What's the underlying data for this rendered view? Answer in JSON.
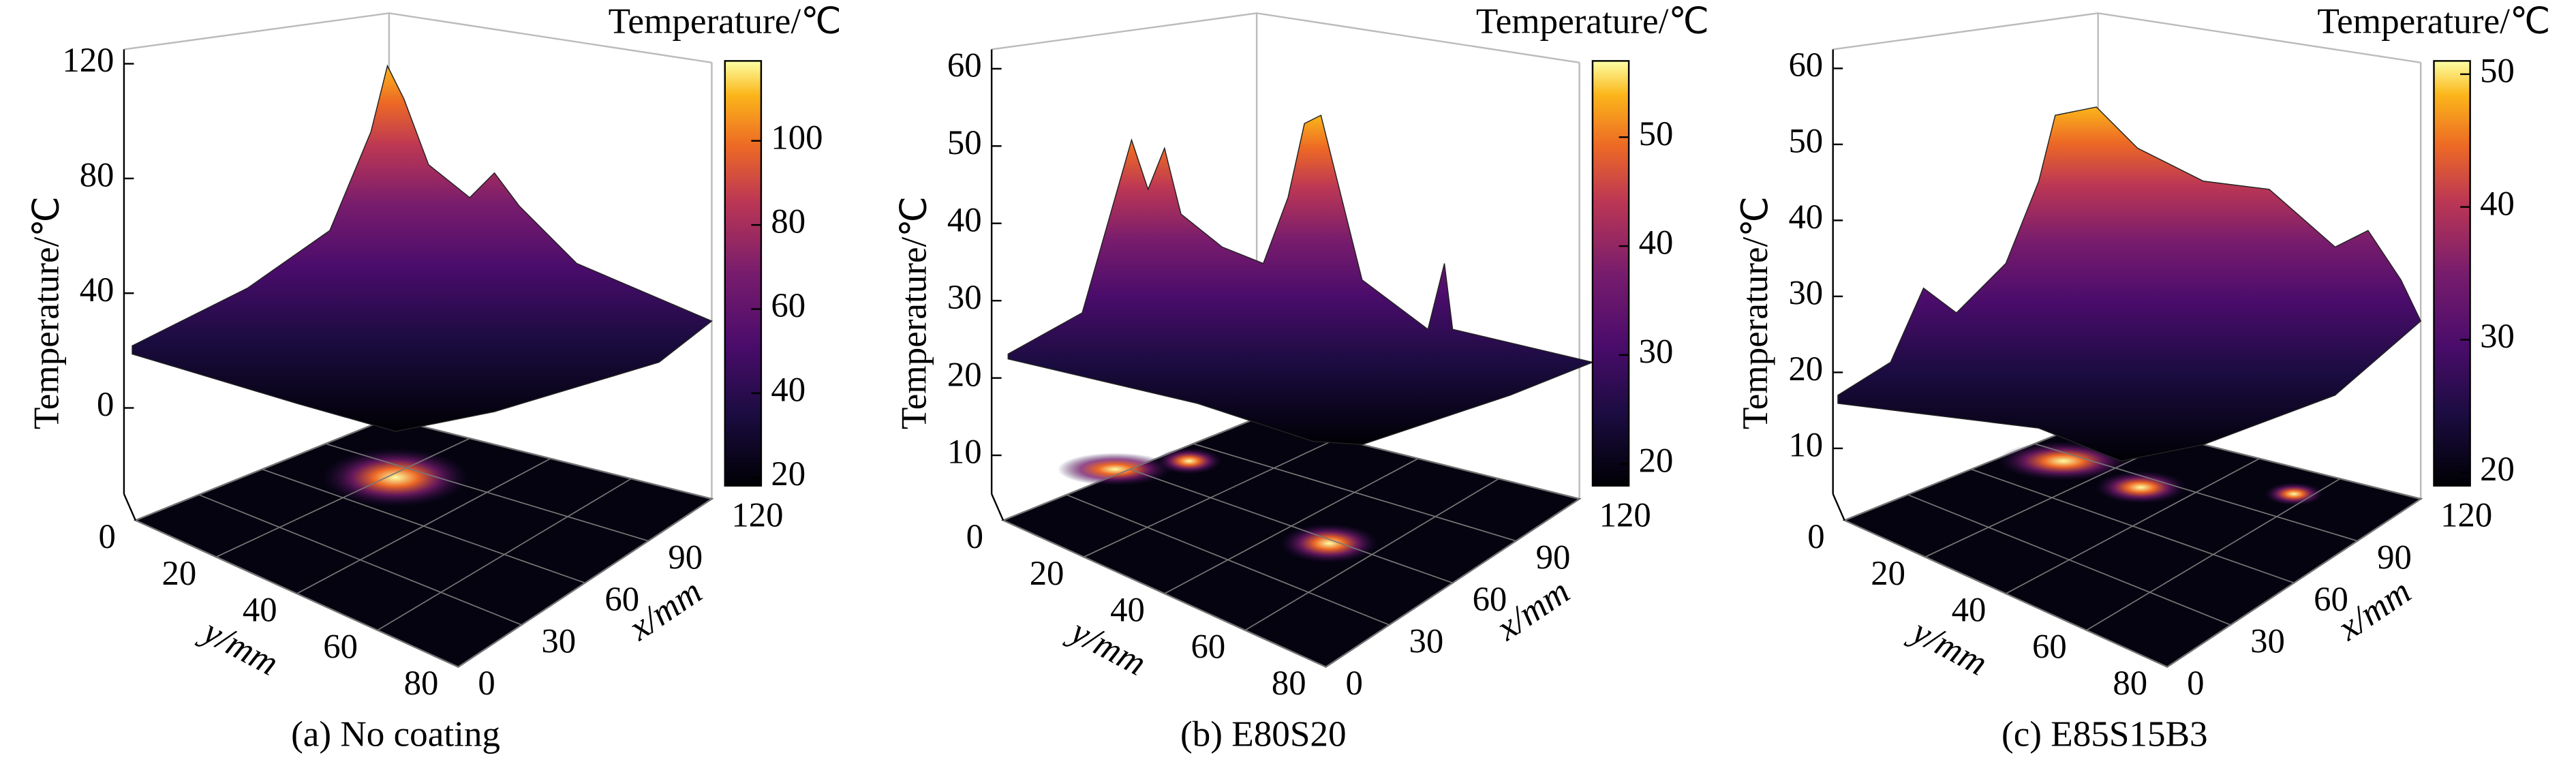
{
  "chart_data": [
    {
      "type": "surface3d",
      "caption": "(a) No coating",
      "colorbar_title": "Temperature/℃",
      "z_label": "Temperature/℃",
      "x_label": "x/mm",
      "y_label": "y/mm",
      "zlim": [
        -30,
        125
      ],
      "zticks": [
        0,
        40,
        80,
        120
      ],
      "clim": [
        18,
        119
      ],
      "cticks": [
        20,
        40,
        60,
        80,
        100
      ],
      "xlim": [
        0,
        120
      ],
      "xticks": [
        0,
        30,
        60,
        90,
        120
      ],
      "ylim": [
        0,
        80
      ],
      "yticks": [
        0,
        20,
        40,
        60,
        80
      ]
    },
    {
      "type": "surface3d",
      "caption": "(b) E80S20",
      "colorbar_title": "Temperature/℃",
      "z_label": "Temperature/℃",
      "x_label": "x/mm",
      "y_label": "y/mm",
      "zlim": [
        5,
        62.5
      ],
      "zticks": [
        10,
        20,
        30,
        40,
        50,
        60
      ],
      "clim": [
        18,
        57
      ],
      "cticks": [
        20,
        30,
        40,
        50
      ],
      "xlim": [
        0,
        120
      ],
      "xticks": [
        0,
        30,
        60,
        90,
        120
      ],
      "ylim": [
        0,
        80
      ],
      "yticks": [
        0,
        20,
        40,
        60,
        80
      ]
    },
    {
      "type": "surface3d",
      "caption": "(c) E85S15B3",
      "colorbar_title": "Temperature/℃",
      "z_label": "Temperature/℃",
      "x_label": "x/mm",
      "y_label": "y/mm",
      "zlim": [
        4,
        62.5
      ],
      "zticks": [
        10,
        20,
        30,
        40,
        50,
        60
      ],
      "clim": [
        19,
        51
      ],
      "cticks": [
        20,
        30,
        40,
        50
      ],
      "xlim": [
        0,
        120
      ],
      "xticks": [
        0,
        30,
        60,
        90,
        120
      ],
      "ylim": [
        0,
        80
      ],
      "yticks": [
        0,
        20,
        40,
        60,
        80
      ]
    }
  ]
}
